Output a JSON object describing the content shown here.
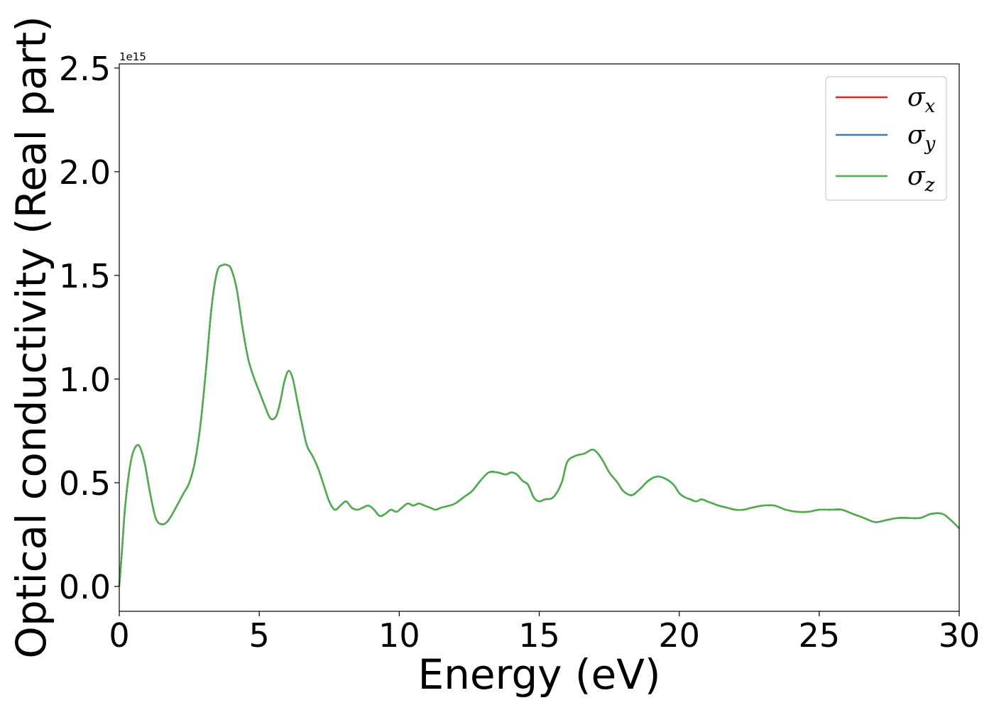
{
  "chart_data": {
    "type": "line",
    "xlabel": "Energy (eV)",
    "ylabel": "Optical conductivity (Real part)",
    "y_offset_text": "1e15",
    "xlim": [
      0,
      30
    ],
    "ylim": [
      -0.12,
      2.52
    ],
    "y_multiplier": 1000000000000000.0,
    "x_ticks": [
      0,
      5,
      10,
      15,
      20,
      25,
      30
    ],
    "x_tick_labels": [
      "0",
      "5",
      "10",
      "15",
      "20",
      "25",
      "30"
    ],
    "y_ticks": [
      0.0,
      0.5,
      1.0,
      1.5,
      2.0,
      2.5
    ],
    "y_tick_labels": [
      "0.0",
      "0.5",
      "1.0",
      "1.5",
      "2.0",
      "2.5"
    ],
    "grid": false,
    "legend_position": "top-right",
    "x": [
      0,
      0.1,
      0.2,
      0.35,
      0.5,
      0.7,
      0.9,
      1.1,
      1.3,
      1.5,
      1.7,
      1.9,
      2.1,
      2.3,
      2.5,
      2.7,
      2.9,
      3.1,
      3.3,
      3.5,
      3.7,
      3.85,
      4.0,
      4.2,
      4.4,
      4.6,
      4.8,
      5.0,
      5.2,
      5.4,
      5.6,
      5.75,
      5.9,
      6.05,
      6.2,
      6.35,
      6.5,
      6.7,
      6.9,
      7.1,
      7.3,
      7.5,
      7.7,
      7.9,
      8.1,
      8.3,
      8.5,
      8.7,
      8.9,
      9.1,
      9.3,
      9.5,
      9.7,
      9.9,
      10.1,
      10.3,
      10.5,
      10.7,
      10.9,
      11.1,
      11.3,
      11.5,
      11.8,
      12.0,
      12.3,
      12.6,
      12.9,
      13.2,
      13.5,
      13.8,
      14.0,
      14.2,
      14.4,
      14.6,
      14.8,
      15.0,
      15.2,
      15.5,
      15.8,
      16.0,
      16.3,
      16.6,
      16.9,
      17.1,
      17.3,
      17.5,
      17.8,
      18.0,
      18.3,
      18.6,
      18.9,
      19.2,
      19.5,
      19.8,
      20.0,
      20.2,
      20.4,
      20.6,
      20.8,
      21.0,
      21.2,
      21.4,
      21.7,
      22.0,
      22.3,
      22.6,
      23.0,
      23.4,
      23.8,
      24.2,
      24.6,
      25.0,
      25.4,
      25.8,
      26.2,
      26.6,
      27.0,
      27.4,
      27.8,
      28.2,
      28.6,
      29.0,
      29.4,
      29.7,
      30.0
    ],
    "series": [
      {
        "name": "σx",
        "color": "#d62728",
        "values": [
          0.0,
          0.18,
          0.37,
          0.55,
          0.65,
          0.68,
          0.6,
          0.45,
          0.33,
          0.3,
          0.31,
          0.35,
          0.4,
          0.45,
          0.5,
          0.6,
          0.78,
          1.05,
          1.35,
          1.52,
          1.55,
          1.55,
          1.53,
          1.43,
          1.25,
          1.1,
          1.01,
          0.94,
          0.87,
          0.81,
          0.82,
          0.89,
          0.99,
          1.04,
          1.0,
          0.9,
          0.8,
          0.68,
          0.63,
          0.57,
          0.49,
          0.41,
          0.37,
          0.39,
          0.41,
          0.38,
          0.37,
          0.38,
          0.39,
          0.37,
          0.34,
          0.35,
          0.37,
          0.36,
          0.38,
          0.4,
          0.39,
          0.4,
          0.39,
          0.38,
          0.37,
          0.38,
          0.39,
          0.4,
          0.43,
          0.46,
          0.51,
          0.55,
          0.55,
          0.54,
          0.55,
          0.54,
          0.51,
          0.49,
          0.43,
          0.41,
          0.42,
          0.43,
          0.5,
          0.6,
          0.63,
          0.64,
          0.66,
          0.64,
          0.6,
          0.55,
          0.5,
          0.46,
          0.44,
          0.47,
          0.51,
          0.53,
          0.52,
          0.49,
          0.45,
          0.43,
          0.42,
          0.41,
          0.42,
          0.41,
          0.4,
          0.39,
          0.38,
          0.37,
          0.37,
          0.38,
          0.39,
          0.39,
          0.37,
          0.36,
          0.36,
          0.37,
          0.37,
          0.37,
          0.35,
          0.33,
          0.31,
          0.32,
          0.33,
          0.33,
          0.33,
          0.35,
          0.35,
          0.32,
          0.28
        ]
      },
      {
        "name": "σy",
        "color": "#3b7cb4",
        "values": [
          0.0,
          0.18,
          0.37,
          0.55,
          0.65,
          0.68,
          0.6,
          0.45,
          0.33,
          0.3,
          0.31,
          0.35,
          0.4,
          0.45,
          0.5,
          0.6,
          0.78,
          1.05,
          1.35,
          1.52,
          1.55,
          1.55,
          1.53,
          1.43,
          1.25,
          1.1,
          1.01,
          0.94,
          0.87,
          0.81,
          0.82,
          0.89,
          0.99,
          1.04,
          1.0,
          0.9,
          0.8,
          0.68,
          0.63,
          0.57,
          0.49,
          0.41,
          0.37,
          0.39,
          0.41,
          0.38,
          0.37,
          0.38,
          0.39,
          0.37,
          0.34,
          0.35,
          0.37,
          0.36,
          0.38,
          0.4,
          0.39,
          0.4,
          0.39,
          0.38,
          0.37,
          0.38,
          0.39,
          0.4,
          0.43,
          0.46,
          0.51,
          0.55,
          0.55,
          0.54,
          0.55,
          0.54,
          0.51,
          0.49,
          0.43,
          0.41,
          0.42,
          0.43,
          0.5,
          0.6,
          0.63,
          0.64,
          0.66,
          0.64,
          0.6,
          0.55,
          0.5,
          0.46,
          0.44,
          0.47,
          0.51,
          0.53,
          0.52,
          0.49,
          0.45,
          0.43,
          0.42,
          0.41,
          0.42,
          0.41,
          0.4,
          0.39,
          0.38,
          0.37,
          0.37,
          0.38,
          0.39,
          0.39,
          0.37,
          0.36,
          0.36,
          0.37,
          0.37,
          0.37,
          0.35,
          0.33,
          0.31,
          0.32,
          0.33,
          0.33,
          0.33,
          0.35,
          0.35,
          0.32,
          0.28
        ]
      },
      {
        "name": "σz",
        "color": "#4daf4a",
        "values": [
          0.0,
          0.18,
          0.37,
          0.55,
          0.65,
          0.68,
          0.6,
          0.45,
          0.33,
          0.3,
          0.31,
          0.35,
          0.4,
          0.45,
          0.5,
          0.6,
          0.78,
          1.05,
          1.35,
          1.52,
          1.55,
          1.55,
          1.53,
          1.43,
          1.25,
          1.1,
          1.01,
          0.94,
          0.87,
          0.81,
          0.82,
          0.89,
          0.99,
          1.04,
          1.0,
          0.9,
          0.8,
          0.68,
          0.63,
          0.57,
          0.49,
          0.41,
          0.37,
          0.39,
          0.41,
          0.38,
          0.37,
          0.38,
          0.39,
          0.37,
          0.34,
          0.35,
          0.37,
          0.36,
          0.38,
          0.4,
          0.39,
          0.4,
          0.39,
          0.38,
          0.37,
          0.38,
          0.39,
          0.4,
          0.43,
          0.46,
          0.51,
          0.55,
          0.55,
          0.54,
          0.55,
          0.54,
          0.51,
          0.49,
          0.43,
          0.41,
          0.42,
          0.43,
          0.5,
          0.6,
          0.63,
          0.64,
          0.66,
          0.64,
          0.6,
          0.55,
          0.5,
          0.46,
          0.44,
          0.47,
          0.51,
          0.53,
          0.52,
          0.49,
          0.45,
          0.43,
          0.42,
          0.41,
          0.42,
          0.41,
          0.4,
          0.39,
          0.38,
          0.37,
          0.37,
          0.38,
          0.39,
          0.39,
          0.37,
          0.36,
          0.36,
          0.37,
          0.37,
          0.37,
          0.35,
          0.33,
          0.31,
          0.32,
          0.33,
          0.33,
          0.33,
          0.35,
          0.35,
          0.32,
          0.28
        ]
      }
    ],
    "legend": [
      {
        "label": "σ",
        "sub": "x",
        "color": "#d62728"
      },
      {
        "label": "σ",
        "sub": "y",
        "color": "#3b7cb4"
      },
      {
        "label": "σ",
        "sub": "z",
        "color": "#4daf4a"
      }
    ]
  }
}
